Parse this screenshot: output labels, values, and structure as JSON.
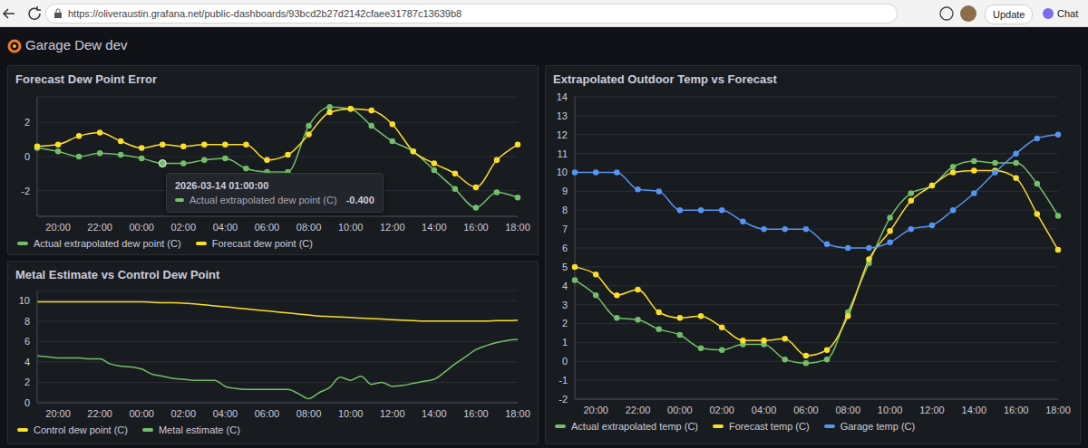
{
  "browser": {
    "url": "https://oliveraustin.grafana.net/public-dashboards/93bcd2b27d2142cfaee31787c13639b8",
    "buttons": [
      "Update",
      "Chat"
    ]
  },
  "dashboard": {
    "title": "Garage Dew dev"
  },
  "chart_data": [
    {
      "type": "line",
      "title": "Forecast Dew Point Error",
      "categories": [
        null,
        "20:00",
        null,
        "22:00",
        null,
        "00:00",
        null,
        "02:00",
        null,
        "04:00",
        null,
        "06:00",
        null,
        "08:00",
        null,
        "10:00",
        null,
        "12:00",
        null,
        "14:00",
        null,
        "16:00",
        null,
        "18:00"
      ],
      "series": [
        {
          "name": "Actual extrapolated dew point (C)",
          "color": "#73bf69",
          "marker": "circle",
          "values": [
            0.5,
            0.3,
            0,
            0.2,
            0.1,
            -0.1,
            -0.4,
            -0.4,
            -0.2,
            -0.1,
            -0.7,
            -0.9,
            -0.9,
            1.8,
            2.9,
            2.8,
            1.8,
            0.9,
            0.3,
            -0.8,
            -1.9,
            -3.0,
            -2.1,
            -2.4
          ]
        },
        {
          "name": "Forecast dew point (C)",
          "color": "#fade2a",
          "marker": "circle",
          "values": [
            0.6,
            0.7,
            1.2,
            1.4,
            0.9,
            0.5,
            0.7,
            0.6,
            0.7,
            0.7,
            0.7,
            -0.2,
            0.1,
            1.3,
            2.6,
            2.8,
            2.7,
            1.9,
            0.3,
            -0.4,
            -1.0,
            -1.8,
            -0.2,
            0.7
          ]
        }
      ],
      "ylim": [
        -3.5,
        3.5
      ],
      "yticks": [
        -2,
        0,
        2
      ],
      "grid": true,
      "legend": "bottom",
      "tooltip": {
        "title": "2026-03-14 01:00:00",
        "series": "Actual extrapolated dew point (C)",
        "value": -0.4,
        "value_label": "-0.400"
      }
    },
    {
      "type": "line",
      "title": "Metal Estimate vs Control Dew Point",
      "categories": [
        null,
        null,
        "20:00",
        null,
        null,
        null,
        "22:00",
        null,
        null,
        null,
        "00:00",
        null,
        null,
        null,
        "02:00",
        null,
        null,
        null,
        "04:00",
        null,
        null,
        null,
        "06:00",
        null,
        null,
        null,
        "08:00",
        null,
        null,
        null,
        "10:00",
        null,
        null,
        null,
        "12:00",
        null,
        null,
        null,
        "14:00",
        null,
        null,
        null,
        "16:00",
        null,
        null,
        null,
        "18:00"
      ],
      "series": [
        {
          "name": "Control dew point (C)",
          "color": "#fade2a",
          "marker": "none",
          "values": [
            9.9,
            9.9,
            9.9,
            9.9,
            9.9,
            9.9,
            9.9,
            9.9,
            9.9,
            9.9,
            9.9,
            9.85,
            9.8,
            9.8,
            9.75,
            9.7,
            9.6,
            9.5,
            9.4,
            9.3,
            9.2,
            9.1,
            9.0,
            8.9,
            8.8,
            8.7,
            8.6,
            8.5,
            8.45,
            8.4,
            8.35,
            8.3,
            8.25,
            8.2,
            8.15,
            8.1,
            8.05,
            8.0,
            8.0,
            8.0,
            8.0,
            8.0,
            8.0,
            8.0,
            8.05,
            8.05,
            8.1
          ]
        },
        {
          "name": "Metal estimate (C)",
          "color": "#73bf69",
          "marker": "none",
          "values": [
            4.6,
            4.5,
            4.4,
            4.4,
            4.4,
            4.3,
            4.3,
            3.8,
            3.6,
            3.5,
            3.3,
            2.8,
            2.6,
            2.4,
            2.3,
            2.2,
            2.2,
            2.2,
            1.6,
            1.4,
            1.3,
            1.3,
            1.3,
            1.3,
            1.3,
            0.9,
            0.4,
            1.0,
            1.5,
            2.5,
            2.2,
            2.6,
            1.8,
            2.0,
            1.6,
            1.7,
            1.9,
            2.1,
            2.3,
            3.0,
            3.8,
            4.5,
            5.2,
            5.6,
            5.9,
            6.1,
            6.2
          ]
        }
      ],
      "ylim": [
        0,
        11
      ],
      "yticks": [
        0,
        2,
        4,
        6,
        8,
        10
      ],
      "grid": true,
      "legend": "bottom"
    },
    {
      "type": "line",
      "title": "Extrapolated Outdoor Temp vs Forecast",
      "categories": [
        null,
        "20:00",
        null,
        "22:00",
        null,
        "00:00",
        null,
        "02:00",
        null,
        "04:00",
        null,
        "06:00",
        null,
        "08:00",
        null,
        "10:00",
        null,
        "12:00",
        null,
        "14:00",
        null,
        "16:00",
        null,
        "18:00"
      ],
      "series": [
        {
          "name": "Actual extrapolated temp (C)",
          "color": "#73bf69",
          "marker": "circle",
          "values": [
            4.3,
            3.5,
            2.3,
            2.2,
            1.7,
            1.4,
            0.7,
            0.6,
            0.9,
            0.9,
            0.1,
            -0.1,
            0.1,
            2.6,
            5.2,
            7.6,
            8.9,
            9.3,
            10.3,
            10.6,
            10.5,
            10.5,
            9.4,
            7.7
          ]
        },
        {
          "name": "Forecast temp (C)",
          "color": "#fade2a",
          "marker": "circle",
          "values": [
            5.0,
            4.6,
            3.5,
            3.8,
            2.6,
            2.3,
            2.4,
            1.8,
            1.1,
            1.1,
            1.2,
            0.3,
            0.6,
            2.4,
            5.4,
            6.9,
            8.5,
            9.3,
            10.0,
            10.1,
            10.1,
            9.7,
            7.8,
            5.9
          ]
        },
        {
          "name": "Garage temp (C)",
          "color": "#5794f2",
          "marker": "circle",
          "values": [
            10,
            10,
            10,
            9.1,
            9.0,
            8.0,
            8.0,
            8.0,
            7.4,
            7.0,
            7.0,
            7.0,
            6.2,
            6.0,
            6.0,
            6.3,
            7.0,
            7.2,
            8.0,
            8.9,
            10.0,
            11.0,
            11.8,
            12.0
          ]
        }
      ],
      "ylim": [
        -2,
        14
      ],
      "yticks": [
        -2,
        -1,
        0,
        1,
        2,
        3,
        4,
        5,
        6,
        7,
        8,
        9,
        10,
        11,
        12,
        13,
        14
      ],
      "grid": true,
      "legend": "bottom"
    }
  ]
}
